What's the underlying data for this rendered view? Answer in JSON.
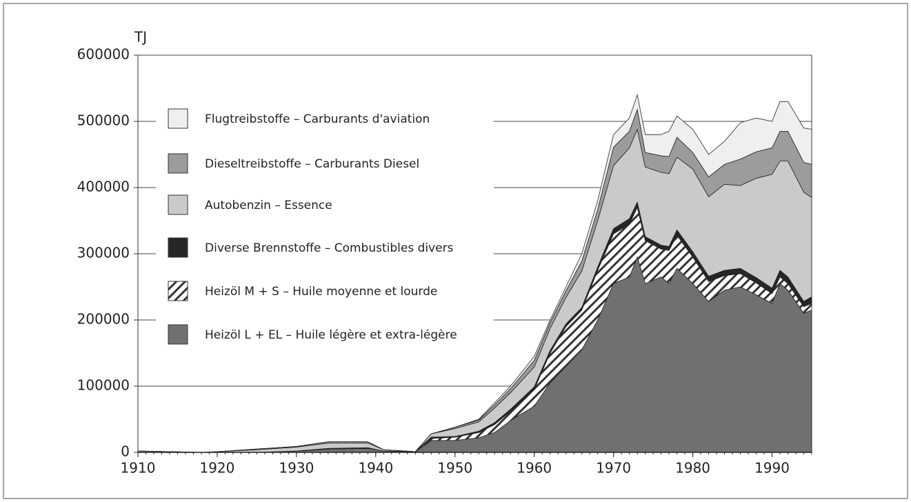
{
  "chart_data": {
    "type": "area",
    "stacked": true,
    "y_label": "TJ",
    "x": [
      1910,
      1918,
      1920,
      1925,
      1930,
      1934,
      1939,
      1941,
      1945,
      1947,
      1950,
      1953,
      1955,
      1957,
      1960,
      1962,
      1964,
      1966,
      1968,
      1970,
      1972,
      1973,
      1974,
      1976,
      1977,
      1978,
      1980,
      1982,
      1984,
      1986,
      1988,
      1990,
      1991,
      1992,
      1994,
      1995
    ],
    "series": [
      {
        "name": "Heizöl L + EL – Huile légère et extra-légère",
        "color": "#707070",
        "values": [
          0,
          0,
          0,
          0,
          2000,
          5000,
          6000,
          2000,
          1000,
          18000,
          18000,
          22000,
          30000,
          48000,
          70000,
          105000,
          130000,
          155000,
          200000,
          255000,
          265000,
          295000,
          255000,
          265000,
          255000,
          278000,
          255000,
          228000,
          245000,
          250000,
          238000,
          225000,
          255000,
          245000,
          210000,
          215000
        ]
      },
      {
        "name": "Heizöl M + S – Huile moyenne et lourde",
        "color": "hatch",
        "values": [
          0,
          0,
          0,
          0,
          0,
          0,
          0,
          0,
          0,
          3000,
          5000,
          8000,
          12000,
          14000,
          25000,
          45000,
          60000,
          60000,
          75000,
          75000,
          80000,
          75000,
          65000,
          42000,
          50000,
          50000,
          40000,
          30000,
          22000,
          20000,
          18000,
          15000,
          10000,
          10000,
          10000,
          10000
        ]
      },
      {
        "name": "Diverse Brennstoffe – Combustibles divers",
        "color": "#262626",
        "values": [
          0,
          0,
          0,
          0,
          0,
          1000,
          1000,
          0,
          0,
          2000,
          1000,
          2000,
          3000,
          3000,
          4000,
          4000,
          4000,
          4000,
          5000,
          8000,
          8000,
          8000,
          6000,
          6000,
          6000,
          8000,
          8000,
          8000,
          8000,
          8000,
          8000,
          8000,
          10000,
          10000,
          8000,
          10000
        ]
      },
      {
        "name": "Autobenzin – Essence",
        "color": "#cacaca",
        "values": [
          2000,
          0,
          1000,
          4000,
          6000,
          8000,
          7000,
          2000,
          0,
          5000,
          12000,
          14000,
          22000,
          25000,
          30000,
          33000,
          40000,
          55000,
          70000,
          95000,
          107000,
          110000,
          105000,
          110000,
          110000,
          110000,
          125000,
          120000,
          130000,
          125000,
          150000,
          172000,
          165000,
          175000,
          165000,
          150000
        ]
      },
      {
        "name": "Dieseltreibstoffe – Carburants Diesel",
        "color": "#9c9c9c",
        "values": [
          0,
          0,
          0,
          1000,
          1000,
          2000,
          2000,
          0,
          0,
          0,
          2000,
          3000,
          5000,
          6000,
          10000,
          9000,
          10000,
          15000,
          17000,
          28000,
          25000,
          30000,
          22000,
          25000,
          26000,
          30000,
          25000,
          30000,
          30000,
          40000,
          40000,
          40000,
          45000,
          45000,
          45000,
          50000
        ]
      },
      {
        "name": "Flugtreibstoffe – Carburants d'aviation",
        "color": "#efefef",
        "values": [
          0,
          0,
          0,
          0,
          0,
          0,
          0,
          0,
          0,
          0,
          0,
          1000,
          3000,
          4000,
          6000,
          4000,
          6000,
          11000,
          13000,
          19000,
          20000,
          22000,
          27000,
          32000,
          38000,
          32000,
          35000,
          34000,
          35000,
          55000,
          51000,
          40000,
          45000,
          45000,
          52000,
          53000
        ]
      }
    ],
    "xlim": [
      1910,
      1995
    ],
    "xticks": [
      1910,
      1920,
      1930,
      1940,
      1950,
      1960,
      1970,
      1980,
      1990
    ],
    "ylim": [
      0,
      600000
    ],
    "yticks": [
      0,
      100000,
      200000,
      300000,
      400000,
      500000,
      600000
    ],
    "grid": true,
    "legend": "upper left"
  }
}
